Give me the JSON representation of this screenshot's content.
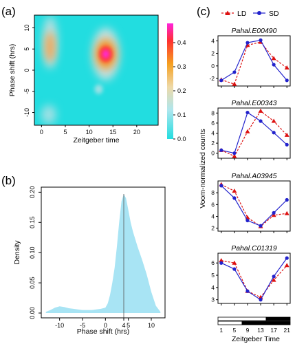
{
  "panels": {
    "a": "(a)",
    "b": "(b)",
    "c": "(c)"
  },
  "colors": {
    "ld": "#dd1111",
    "sd": "#2222cc",
    "density_fill": "#a8e4f4",
    "heat_bg": "#22dde0"
  },
  "chart_data": [
    {
      "id": "a",
      "type": "heatmap",
      "xlabel": "Zeitgeber time",
      "ylabel": "Phase shift (hrs)",
      "xlim": [
        -1.5,
        24.5
      ],
      "ylim": [
        -13,
        13
      ],
      "xticks": [
        "0",
        "5",
        "10",
        "15",
        "20"
      ],
      "yticks": [
        "-10",
        "-5",
        "0",
        "5",
        "10"
      ],
      "colorbar": {
        "range": [
          0,
          0.48
        ],
        "ticks": [
          "0.0",
          "0.1",
          "0.2",
          "0.3",
          "0.4"
        ]
      },
      "hotspots": [
        {
          "zt": 1.8,
          "phase": 5.5,
          "value": 0.3
        },
        {
          "zt": 13.5,
          "phase": 3.8,
          "value": 0.46
        },
        {
          "zt": 1.5,
          "phase": -10.5,
          "value": 0.17
        },
        {
          "zt": 12.0,
          "phase": -4.5,
          "value": 0.14
        }
      ]
    },
    {
      "id": "b",
      "type": "area",
      "xlabel": "Phase shift (hrs)",
      "ylabel": "Density",
      "xlim": [
        -14,
        13
      ],
      "ylim": [
        0,
        0.205
      ],
      "xticks": [
        "-10",
        "-5",
        "0",
        "4",
        "5",
        "10"
      ],
      "yticks": [
        "0.00",
        "0.05",
        "0.10",
        "0.15",
        "0.20"
      ],
      "vline": 4,
      "x": [
        -13,
        -12,
        -11,
        -10,
        -9,
        -8,
        -7,
        -6,
        -5,
        -4,
        -3,
        -2,
        -1,
        0,
        0.5,
        1,
        1.5,
        2,
        2.5,
        3,
        3.5,
        4,
        4.5,
        5,
        5.5,
        6,
        7,
        8,
        9,
        10,
        11,
        12
      ],
      "y": [
        0.002,
        0.005,
        0.009,
        0.011,
        0.01,
        0.008,
        0.007,
        0.006,
        0.005,
        0.005,
        0.005,
        0.006,
        0.007,
        0.009,
        0.016,
        0.03,
        0.05,
        0.075,
        0.11,
        0.15,
        0.185,
        0.197,
        0.19,
        0.17,
        0.15,
        0.135,
        0.11,
        0.088,
        0.064,
        0.035,
        0.012,
        0.002
      ]
    },
    {
      "id": "c",
      "type": "line",
      "xlabel": "Zeitgeber Time",
      "ylabel": "Voom-normalized counts",
      "x": [
        1,
        5,
        9,
        13,
        17,
        21
      ],
      "xticks": [
        "1",
        "5",
        "9",
        "13",
        "17",
        "21"
      ],
      "legend": {
        "ld": "LD",
        "sd": "SD"
      },
      "genes": [
        {
          "name": "Pahal.E00490",
          "ylim": [
            -3.2,
            4.8
          ],
          "yticks": [
            "-2",
            "0",
            "2",
            "4"
          ],
          "ytick_values": [
            -2,
            0,
            2,
            4
          ],
          "series": [
            {
              "name": "LD",
              "values": [
                -2.2,
                -2.9,
                3.3,
                3.8,
                1.2,
                -0.3
              ]
            },
            {
              "name": "SD",
              "values": [
                -2.3,
                -1.0,
                3.7,
                4.1,
                0.2,
                -2.3
              ]
            }
          ]
        },
        {
          "name": "Pahal.E00343",
          "ylim": [
            -1,
            9
          ],
          "yticks": [
            "0",
            "2",
            "4",
            "6",
            "8"
          ],
          "ytick_values": [
            0,
            2,
            4,
            6,
            8
          ],
          "series": [
            {
              "name": "LD",
              "values": [
                0.6,
                -0.6,
                4.3,
                8.4,
                6.4,
                3.6
              ]
            },
            {
              "name": "SD",
              "values": [
                0.6,
                0.0,
                8.1,
                6.4,
                4.1,
                1.7
              ]
            }
          ]
        },
        {
          "name": "Pahal.A03945",
          "ylim": [
            1.5,
            10
          ],
          "yticks": [
            "2",
            "4",
            "6",
            "8"
          ],
          "ytick_values": [
            2,
            4,
            6,
            8
          ],
          "series": [
            {
              "name": "LD",
              "values": [
                9.4,
                8.3,
                3.8,
                2.3,
                4.2,
                4.5
              ]
            },
            {
              "name": "SD",
              "values": [
                9.2,
                7.1,
                3.3,
                2.4,
                4.6,
                6.8
              ]
            }
          ]
        },
        {
          "name": "Pahal.C01319",
          "ylim": [
            2.7,
            6.8
          ],
          "yticks": [
            "3",
            "4",
            "5",
            "6"
          ],
          "ytick_values": [
            3,
            4,
            5,
            6
          ],
          "series": [
            {
              "name": "LD",
              "values": [
                6.2,
                6.0,
                3.7,
                3.2,
                4.6,
                5.8
              ]
            },
            {
              "name": "SD",
              "values": [
                6.0,
                5.5,
                3.7,
                3.0,
                4.9,
                6.4
              ]
            }
          ]
        }
      ],
      "photoperiod_bars": [
        {
          "name": "LD",
          "light_end_zt": 16
        },
        {
          "name": "SD",
          "light_end_zt": 8
        }
      ]
    }
  ]
}
